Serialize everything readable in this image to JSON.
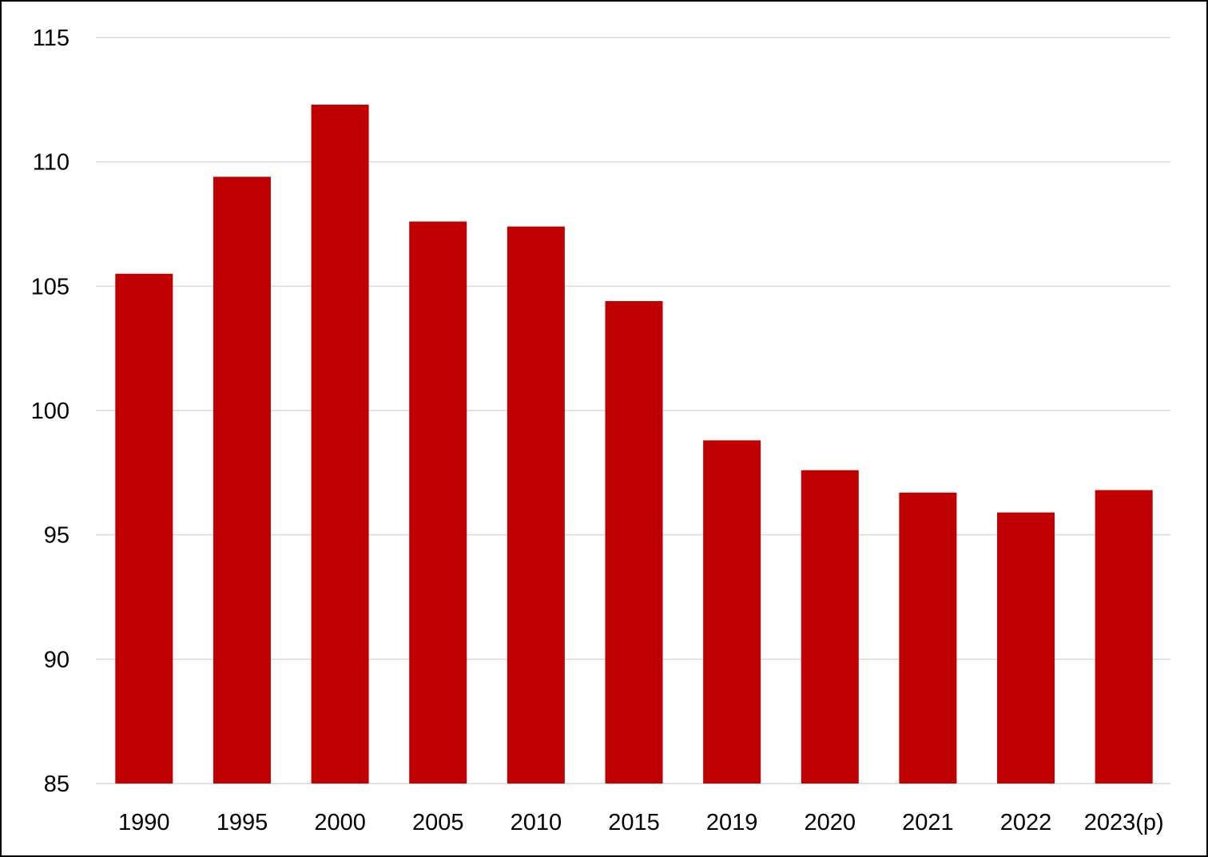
{
  "colors": {
    "bar": "#c00000",
    "gridline": "#d9d9d9",
    "axis_text": "#000000",
    "border": "#000000",
    "background": "#ffffff"
  },
  "chart_data": {
    "type": "bar",
    "title": "",
    "xlabel": "",
    "ylabel": "",
    "categories": [
      "1990",
      "1995",
      "2000",
      "2005",
      "2010",
      "2015",
      "2019",
      "2020",
      "2021",
      "2022",
      "2023(p)"
    ],
    "values": [
      105.5,
      109.4,
      112.3,
      107.6,
      107.4,
      104.4,
      98.8,
      97.6,
      96.7,
      95.9,
      96.8
    ],
    "ylim": [
      85,
      115
    ],
    "yticks": [
      85,
      90,
      95,
      100,
      105,
      110,
      115
    ],
    "grid": true,
    "legend": "none"
  }
}
